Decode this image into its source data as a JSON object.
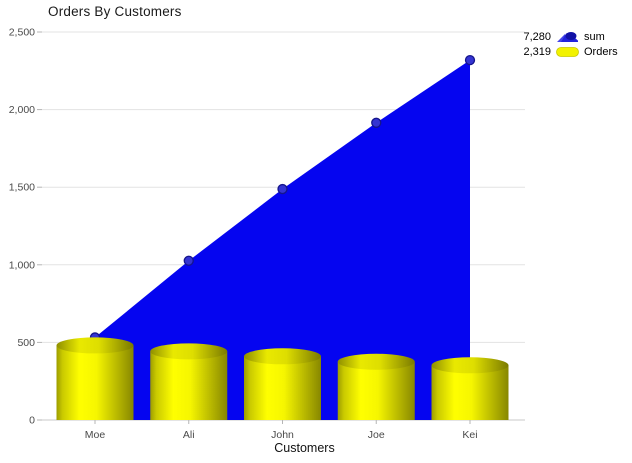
{
  "title": "Orders By Customers",
  "legend": {
    "position": "top-right",
    "items": [
      {
        "value": "7,280",
        "label": "sum",
        "icon": "area-series-icon",
        "color": "#0505f0"
      },
      {
        "value": "2,319",
        "label": "Orders",
        "icon": "cylinder-series-icon",
        "color": "#f2f200"
      }
    ]
  },
  "colors": {
    "area": "#0505f0",
    "point_fill": "#3434d2",
    "point_stroke": "#15158c",
    "bar_main": "#ffff00",
    "bar_edge_dark": "#878700",
    "grid": "#e3e3e3",
    "axis_line": "#c9c9c9",
    "tick": "#b5b5b5",
    "axis_text": "#4a4a4a",
    "xaxis_title_text": "#111111",
    "title_text": "#1a1a1a",
    "background": "#ffffff"
  },
  "chart_data": {
    "type": "combo",
    "title": "Orders By Customers",
    "xlabel": "Customers",
    "ylabel": "",
    "categories": [
      "Moe",
      "Ali",
      "John",
      "Joe",
      "Kei"
    ],
    "series": [
      {
        "name": "sum",
        "type": "area",
        "color": "#0505f0",
        "values": [
          532,
          1026,
          1488,
          1915,
          2319
        ],
        "legend_total": "7,280",
        "markers": true
      },
      {
        "name": "Orders",
        "type": "cylinder-bar",
        "color": "#ffff00",
        "values": [
          532,
          494,
          462,
          427,
          404
        ],
        "legend_total": "2,319"
      }
    ],
    "ylim": [
      0,
      2500
    ],
    "ytick_step": 500,
    "ytick_labels": [
      "0",
      "500",
      "1,000",
      "1,500",
      "2,000",
      "2,500"
    ],
    "grid": true,
    "legend_position": "top-right"
  }
}
